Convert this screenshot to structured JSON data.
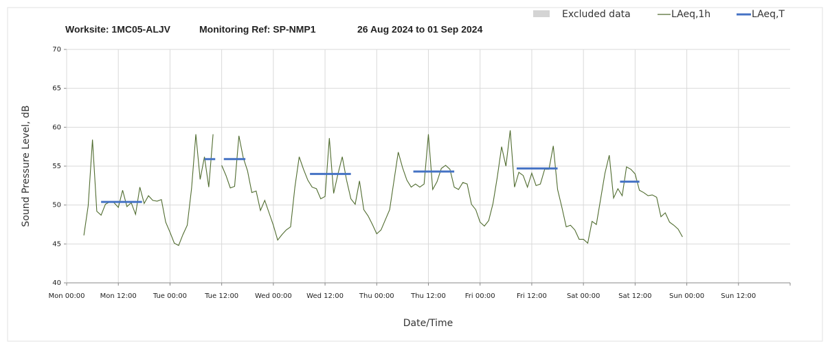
{
  "chart_data": {
    "type": "line",
    "title_parts": [
      "Worksite: 1MC05-ALJV",
      "Monitoring Ref: SP-NMP1",
      "26 Aug 2024 to 01 Sep 2024"
    ],
    "y_label": "Sound Pressure Level, dB",
    "x_label": "Date/Time",
    "xlim": [
      0,
      168
    ],
    "xticks": [
      {
        "value": 0,
        "label": "Mon 00:00"
      },
      {
        "value": 12,
        "label": "Mon 12:00"
      },
      {
        "value": 24,
        "label": "Tue 00:00"
      },
      {
        "value": 36,
        "label": "Tue 12:00"
      },
      {
        "value": 48,
        "label": "Wed 00:00"
      },
      {
        "value": 60,
        "label": "Wed 12:00"
      },
      {
        "value": 72,
        "label": "Thu 00:00"
      },
      {
        "value": 84,
        "label": "Thu 12:00"
      },
      {
        "value": 96,
        "label": "Fri 00:00"
      },
      {
        "value": 108,
        "label": "Fri 12:00"
      },
      {
        "value": 120,
        "label": "Sat 00:00"
      },
      {
        "value": 132,
        "label": "Sat 12:00"
      },
      {
        "value": 144,
        "label": "Sun 00:00"
      },
      {
        "value": 156,
        "label": "Sun 12:00"
      }
    ],
    "ylim": [
      40,
      70
    ],
    "yticks": [
      40,
      45,
      50,
      55,
      60,
      65,
      70
    ],
    "grid": true,
    "excluded": {
      "name": "Excluded data",
      "color": "#d4d4d4"
    },
    "series": [
      {
        "name": "LAeq,1h",
        "color": "#4f6b2e",
        "x": [
          4,
          5,
          6,
          7,
          8,
          9,
          10,
          11,
          12,
          13,
          14,
          15,
          16,
          17,
          18,
          19,
          20,
          21,
          22,
          23,
          24,
          25,
          26,
          27,
          28,
          29,
          30,
          31,
          32,
          33,
          34,
          35,
          36,
          37,
          38,
          39,
          40,
          41,
          42,
          43,
          44,
          45,
          46,
          47,
          48,
          49,
          50,
          51,
          52,
          53,
          54,
          55,
          56,
          57,
          58,
          59,
          60,
          61,
          62,
          63,
          64,
          65,
          66,
          67,
          68,
          69,
          70,
          71,
          72,
          73,
          74,
          75,
          76,
          77,
          78,
          79,
          80,
          81,
          82,
          83,
          84,
          85,
          86,
          87,
          88,
          89,
          90,
          91,
          92,
          93,
          94,
          95,
          96,
          97,
          98,
          99,
          100,
          101,
          102,
          103,
          104,
          105,
          106,
          107,
          108,
          109,
          110,
          111,
          112,
          113,
          114,
          115,
          116,
          117,
          118,
          119,
          120,
          121,
          122,
          123,
          124,
          125,
          126,
          127,
          128,
          129,
          130,
          131,
          132,
          133,
          134,
          135,
          136,
          137,
          138,
          139,
          140,
          141,
          142,
          143
        ],
        "values": [
          46.1,
          49.9,
          58.4,
          49.2,
          48.7,
          50.1,
          50.4,
          50.3,
          49.7,
          51.9,
          49.8,
          50.3,
          48.8,
          52.3,
          50.2,
          51.2,
          50.6,
          50.5,
          50.7,
          47.8,
          46.5,
          45.1,
          44.8,
          46.2,
          47.4,
          52.1,
          59.1,
          53.3,
          56.2,
          52.3,
          59.1,
          null,
          55.1,
          53.8,
          52.2,
          52.4,
          58.9,
          56.1,
          54.4,
          51.6,
          51.8,
          49.3,
          50.6,
          49.0,
          47.4,
          45.5,
          46.2,
          46.8,
          47.2,
          52.3,
          56.2,
          54.6,
          53.2,
          52.3,
          52.1,
          50.8,
          51.1,
          58.6,
          51.5,
          54.0,
          56.2,
          53.2,
          50.8,
          50.1,
          53.1,
          49.4,
          48.6,
          47.5,
          46.3,
          46.8,
          48.1,
          49.4,
          53.1,
          56.8,
          54.8,
          53.2,
          52.3,
          52.7,
          52.3,
          52.7,
          59.1,
          52.0,
          53.0,
          54.7,
          55.1,
          54.6,
          52.3,
          52.0,
          52.9,
          52.7,
          50.1,
          49.4,
          47.8,
          47.3,
          48.0,
          50.2,
          53.6,
          57.5,
          55.0,
          59.6,
          52.3,
          54.2,
          53.8,
          52.3,
          54.1,
          52.5,
          52.7,
          54.6,
          54.6,
          57.6,
          52.0,
          49.7,
          47.2,
          47.4,
          46.8,
          45.6,
          45.6,
          45.1,
          47.9,
          47.5,
          50.8,
          54.1,
          56.4,
          50.9,
          52.1,
          51.2,
          54.9,
          54.6,
          54.0,
          51.9,
          51.6,
          51.2,
          51.3,
          51.0,
          48.5,
          49.0,
          47.8,
          47.4,
          46.9,
          45.9
        ]
      }
    ],
    "levels": {
      "name": "LAeq,T",
      "color": "#4472c4",
      "segments": [
        {
          "x": [
            8,
            17.5
          ],
          "value": 50.4
        },
        {
          "x": [
            32,
            34.5
          ],
          "value": 55.9
        },
        {
          "x": [
            36.5,
            41.5
          ],
          "value": 55.9
        },
        {
          "x": [
            56.5,
            66
          ],
          "value": 54.0
        },
        {
          "x": [
            80.5,
            90
          ],
          "value": 54.3
        },
        {
          "x": [
            104.5,
            114
          ],
          "value": 54.7
        },
        {
          "x": [
            128.5,
            133
          ],
          "value": 53.0
        }
      ]
    }
  }
}
